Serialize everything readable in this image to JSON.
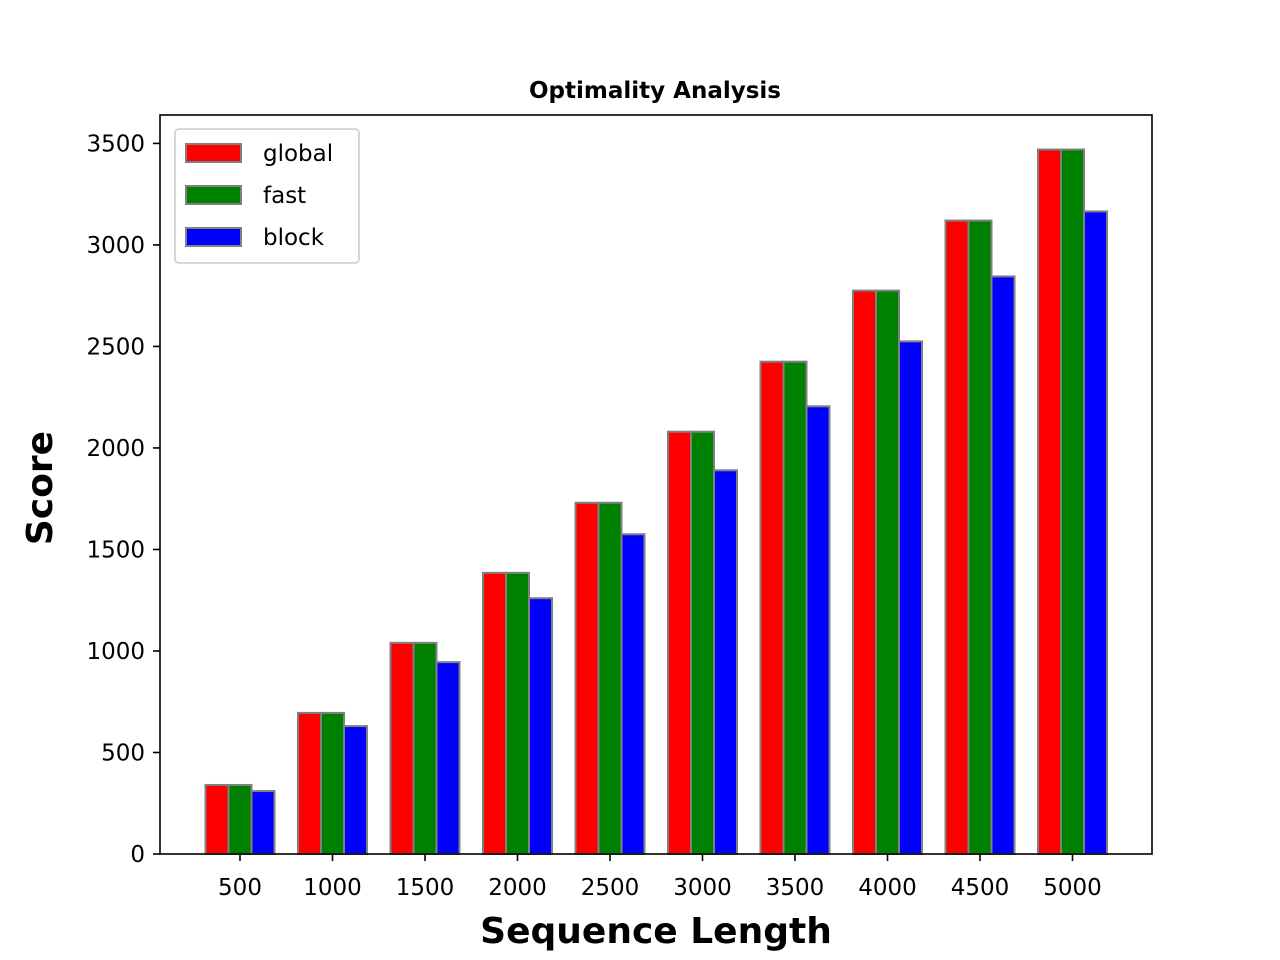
{
  "chart_data": {
    "type": "bar",
    "title": "Optimality Analysis",
    "xlabel": "Sequence Length",
    "ylabel": "Score",
    "categories": [
      "500",
      "1000",
      "1500",
      "2000",
      "2500",
      "3000",
      "3500",
      "4000",
      "4500",
      "5000"
    ],
    "series": [
      {
        "name": "global",
        "color": "#ff0000",
        "values": [
          340,
          695,
          1040,
          1385,
          1730,
          2080,
          2425,
          2775,
          3120,
          3470
        ]
      },
      {
        "name": "fast",
        "color": "#008000",
        "values": [
          340,
          695,
          1040,
          1385,
          1730,
          2080,
          2425,
          2775,
          3120,
          3470
        ]
      },
      {
        "name": "block",
        "color": "#0000ff",
        "values": [
          310,
          630,
          945,
          1260,
          1575,
          1890,
          2205,
          2525,
          2845,
          3165
        ]
      }
    ],
    "ylim": [
      0,
      3640
    ],
    "yticks": [
      0,
      500,
      1000,
      1500,
      2000,
      2500,
      3000,
      3500
    ],
    "legend_position": "top-left",
    "grid": false,
    "bar_edge_color": "#808080"
  }
}
